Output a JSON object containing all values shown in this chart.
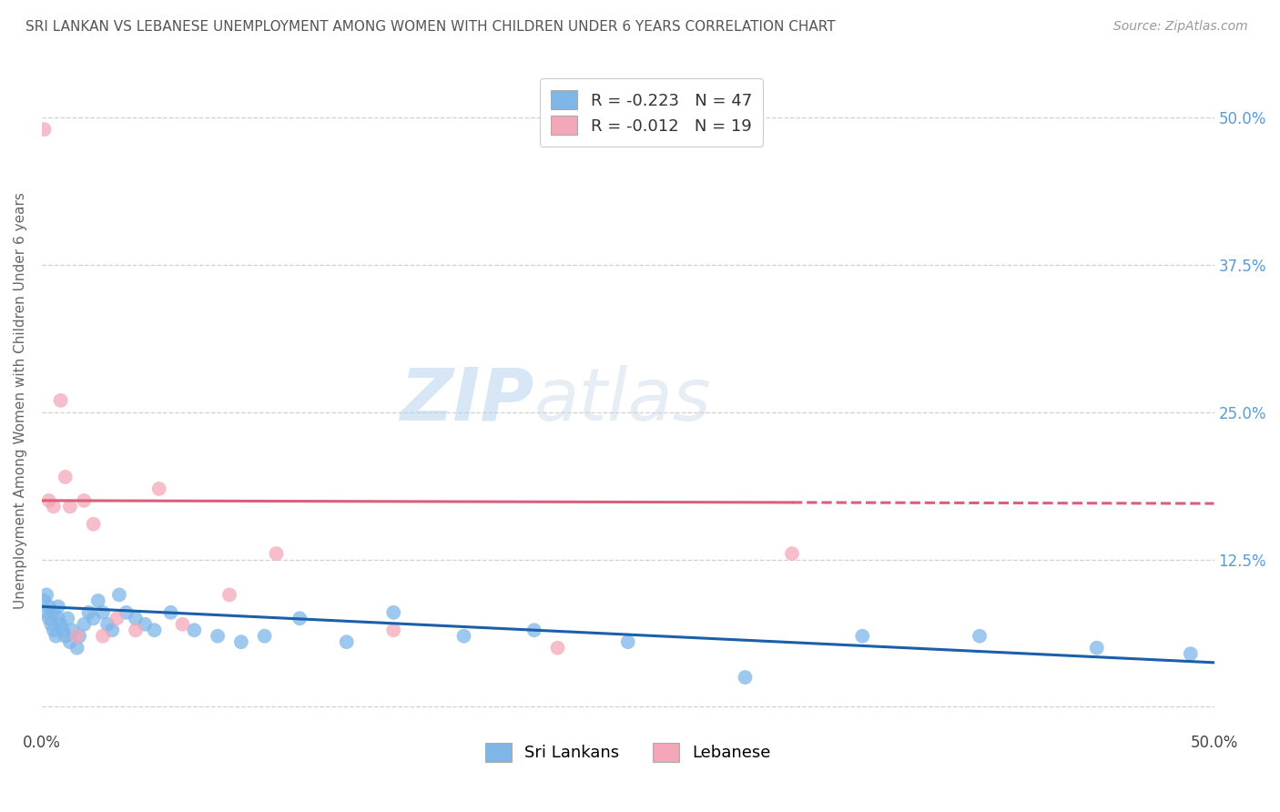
{
  "title": "SRI LANKAN VS LEBANESE UNEMPLOYMENT AMONG WOMEN WITH CHILDREN UNDER 6 YEARS CORRELATION CHART",
  "source": "Source: ZipAtlas.com",
  "ylabel": "Unemployment Among Women with Children Under 6 years",
  "xlim": [
    0.0,
    0.5
  ],
  "ylim": [
    -0.02,
    0.54
  ],
  "sri_lankans_x": [
    0.001,
    0.002,
    0.002,
    0.003,
    0.003,
    0.004,
    0.005,
    0.005,
    0.006,
    0.007,
    0.007,
    0.008,
    0.009,
    0.01,
    0.011,
    0.012,
    0.013,
    0.015,
    0.016,
    0.018,
    0.02,
    0.022,
    0.024,
    0.026,
    0.028,
    0.03,
    0.033,
    0.036,
    0.04,
    0.044,
    0.048,
    0.055,
    0.065,
    0.075,
    0.085,
    0.095,
    0.11,
    0.13,
    0.15,
    0.18,
    0.21,
    0.25,
    0.3,
    0.35,
    0.4,
    0.45,
    0.49
  ],
  "sri_lankans_y": [
    0.09,
    0.08,
    0.095,
    0.075,
    0.085,
    0.07,
    0.065,
    0.08,
    0.06,
    0.075,
    0.085,
    0.07,
    0.065,
    0.06,
    0.075,
    0.055,
    0.065,
    0.05,
    0.06,
    0.07,
    0.08,
    0.075,
    0.09,
    0.08,
    0.07,
    0.065,
    0.095,
    0.08,
    0.075,
    0.07,
    0.065,
    0.08,
    0.065,
    0.06,
    0.055,
    0.06,
    0.075,
    0.055,
    0.08,
    0.06,
    0.065,
    0.055,
    0.025,
    0.06,
    0.06,
    0.05,
    0.045
  ],
  "lebanese_x": [
    0.001,
    0.003,
    0.005,
    0.008,
    0.01,
    0.012,
    0.015,
    0.018,
    0.022,
    0.026,
    0.032,
    0.04,
    0.05,
    0.06,
    0.08,
    0.1,
    0.15,
    0.22,
    0.32
  ],
  "lebanese_y": [
    0.49,
    0.175,
    0.17,
    0.26,
    0.195,
    0.17,
    0.06,
    0.175,
    0.155,
    0.06,
    0.075,
    0.065,
    0.185,
    0.07,
    0.095,
    0.13,
    0.065,
    0.05,
    0.13
  ],
  "sri_color": "#7eb6e8",
  "leb_color": "#f4a7b9",
  "sri_trend_color": "#1a5fa8",
  "leb_trend_color": "#d9607a",
  "sri_r": -0.223,
  "sri_n": 47,
  "leb_r": -0.012,
  "leb_n": 19,
  "sri_trend_slope": -0.095,
  "sri_trend_intercept": 0.085,
  "leb_trend_slope": -0.005,
  "leb_trend_intercept": 0.175,
  "legend_labels": [
    "Sri Lankans",
    "Lebanese"
  ],
  "watermark_zip": "ZIP",
  "watermark_atlas": "atlas",
  "background_color": "#ffffff",
  "grid_color": "#d0d0d0",
  "title_color": "#555555",
  "axis_label_color": "#666666",
  "right_tick_color": "#5b9bd5",
  "y_ticks": [
    0.0,
    0.125,
    0.25,
    0.375,
    0.5
  ],
  "y_tick_labels_right": [
    "",
    "12.5%",
    "25.0%",
    "37.5%",
    "50.0%"
  ]
}
